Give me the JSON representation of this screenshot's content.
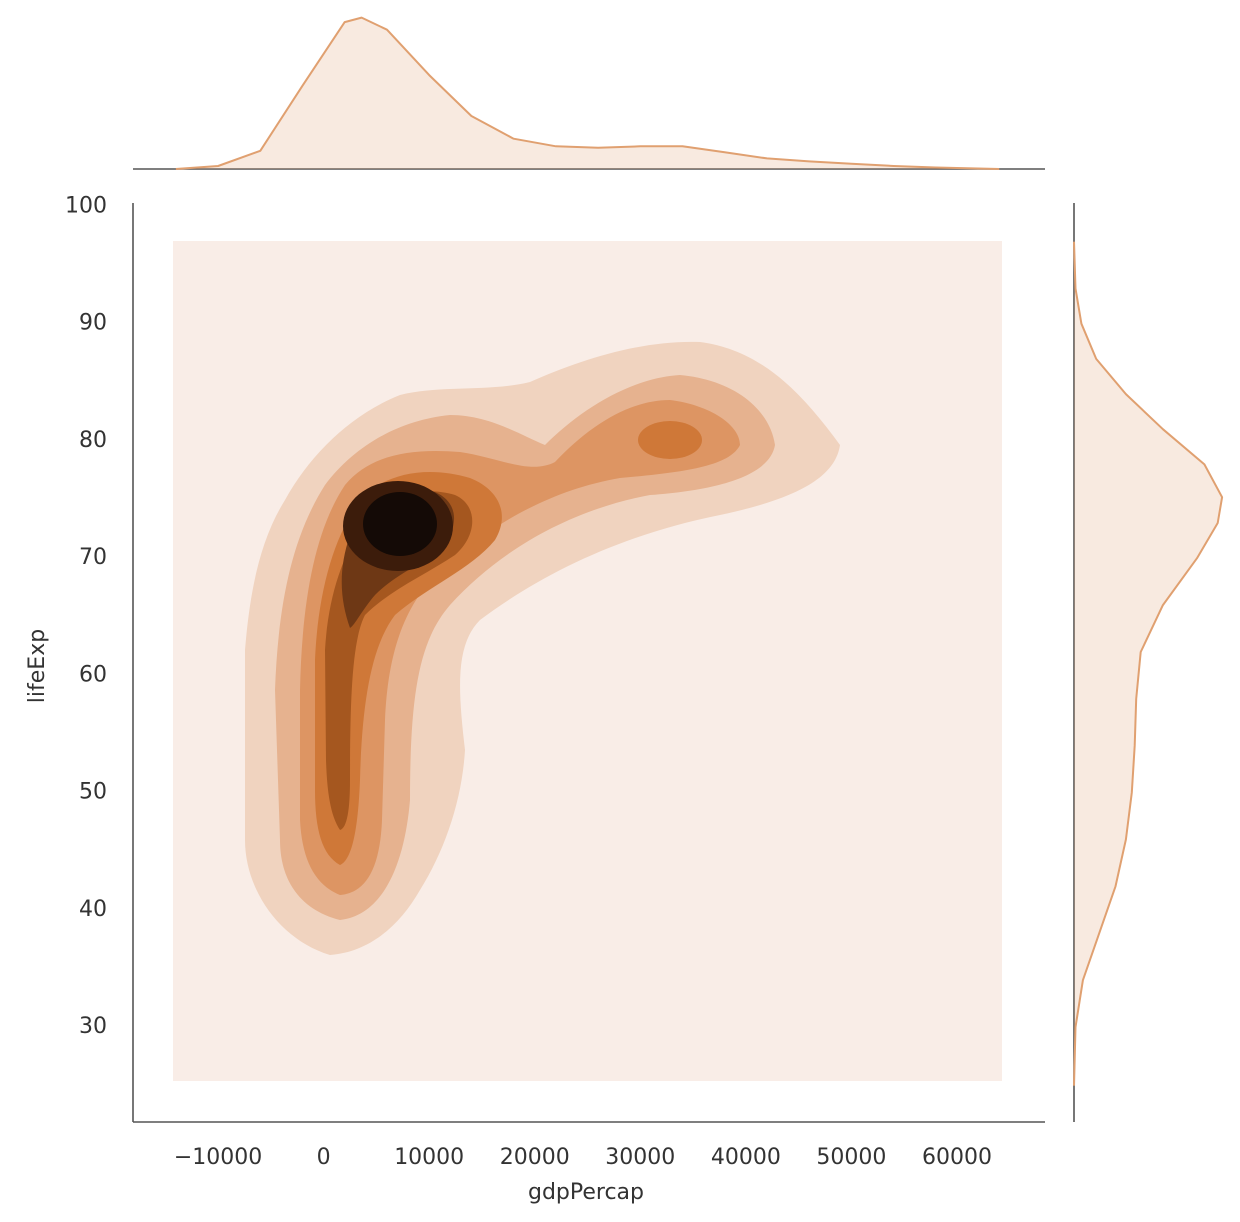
{
  "chart_data": {
    "type": "kde_joint",
    "xlabel": "gdpPercap",
    "ylabel": "lifeExp",
    "xlim": [
      -18060,
      68340
    ],
    "ylim": [
      21.9,
      100.3
    ],
    "xticks": [
      {
        "value": -10000,
        "label": "−10000"
      },
      0,
      10000,
      20000,
      30000,
      40000,
      50000,
      60000
    ],
    "yticks": [
      30,
      40,
      50,
      60,
      70,
      80,
      90,
      100
    ],
    "color": "#e0a070",
    "marginal_x": {
      "x": [
        -14000,
        -10000,
        -6000,
        -2000,
        2000,
        3600,
        6000,
        10000,
        14000,
        18000,
        22000,
        26000,
        30000,
        34000,
        38000,
        42000,
        46000,
        50000,
        54000,
        58000,
        64000
      ],
      "values": [
        0,
        0.02,
        0.12,
        0.55,
        0.97,
        1.0,
        0.92,
        0.62,
        0.35,
        0.2,
        0.15,
        0.14,
        0.15,
        0.15,
        0.11,
        0.07,
        0.05,
        0.035,
        0.02,
        0.01,
        0
      ],
      "lim": [
        0,
        1.05
      ]
    },
    "marginal_y": {
      "y": [
        25,
        30,
        34,
        38,
        42,
        46,
        50,
        54,
        58,
        62,
        66,
        70,
        73,
        75.2,
        78,
        81,
        84,
        87,
        90,
        93,
        97
      ],
      "values": [
        0,
        0.01,
        0.06,
        0.17,
        0.28,
        0.35,
        0.39,
        0.41,
        0.42,
        0.45,
        0.6,
        0.83,
        0.97,
        1.0,
        0.88,
        0.6,
        0.35,
        0.15,
        0.05,
        0.01,
        0
      ],
      "lim": [
        0,
        1.08
      ]
    }
  }
}
